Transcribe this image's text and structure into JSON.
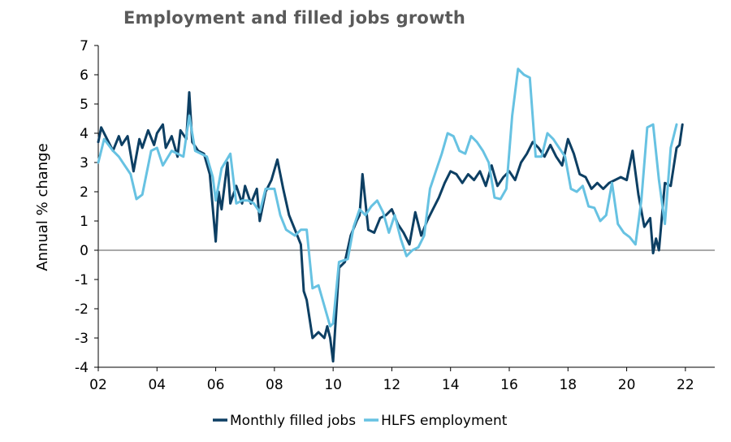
{
  "chart_data": {
    "type": "line",
    "title": "Employment and filled jobs growth",
    "xlabel": "",
    "ylabel": "Annual % change",
    "xlim": [
      2002,
      2023
    ],
    "ylim": [
      -4,
      7
    ],
    "x_ticks": [
      2002,
      2004,
      2006,
      2008,
      2010,
      2012,
      2014,
      2016,
      2018,
      2020,
      2022
    ],
    "x_tick_labels": [
      "02",
      "04",
      "06",
      "08",
      "10",
      "12",
      "14",
      "16",
      "18",
      "20",
      "22"
    ],
    "y_ticks": [
      -4,
      -3,
      -2,
      -1,
      0,
      1,
      2,
      3,
      4,
      5,
      6,
      7
    ],
    "y_tick_labels": [
      "-4",
      "-3",
      "-2",
      "-1",
      "0",
      "1",
      "2",
      "3",
      "4",
      "5",
      "6",
      "7"
    ],
    "grid": false,
    "legend_position": "bottom",
    "series": [
      {
        "name": "Monthly filled jobs",
        "color": "#0d3f63",
        "x": [
          2002.0,
          2002.1,
          2002.3,
          2002.5,
          2002.7,
          2002.8,
          2003.0,
          2003.2,
          2003.4,
          2003.5,
          2003.7,
          2003.9,
          2004.0,
          2004.2,
          2004.3,
          2004.5,
          2004.7,
          2004.8,
          2005.0,
          2005.1,
          2005.2,
          2005.4,
          2005.6,
          2005.8,
          2006.0,
          2006.1,
          2006.2,
          2006.4,
          2006.5,
          2006.7,
          2006.9,
          2007.0,
          2007.2,
          2007.4,
          2007.5,
          2007.7,
          2007.9,
          2008.1,
          2008.3,
          2008.5,
          2008.7,
          2008.9,
          2009.0,
          2009.1,
          2009.3,
          2009.5,
          2009.7,
          2009.8,
          2009.9,
          2010.0,
          2010.2,
          2010.4,
          2010.6,
          2010.8,
          2010.9,
          2011.0,
          2011.2,
          2011.4,
          2011.6,
          2011.8,
          2012.0,
          2012.2,
          2012.4,
          2012.6,
          2012.8,
          2013.0,
          2013.2,
          2013.4,
          2013.6,
          2013.8,
          2014.0,
          2014.2,
          2014.4,
          2014.6,
          2014.8,
          2015.0,
          2015.2,
          2015.4,
          2015.6,
          2015.8,
          2016.0,
          2016.2,
          2016.4,
          2016.6,
          2016.8,
          2017.0,
          2017.2,
          2017.4,
          2017.6,
          2017.8,
          2018.0,
          2018.2,
          2018.4,
          2018.6,
          2018.8,
          2019.0,
          2019.2,
          2019.4,
          2019.6,
          2019.8,
          2020.0,
          2020.2,
          2020.4,
          2020.6,
          2020.8,
          2020.9,
          2021.0,
          2021.1,
          2021.3,
          2021.5,
          2021.7,
          2021.8,
          2021.9
        ],
        "values": [
          3.7,
          4.2,
          3.8,
          3.4,
          3.9,
          3.6,
          3.9,
          2.7,
          3.8,
          3.5,
          4.1,
          3.6,
          4.0,
          4.3,
          3.5,
          3.9,
          3.2,
          4.1,
          3.8,
          5.4,
          3.7,
          3.4,
          3.3,
          2.6,
          0.3,
          2.0,
          1.4,
          3.0,
          1.6,
          2.2,
          1.6,
          2.2,
          1.6,
          2.1,
          1.0,
          2.0,
          2.4,
          3.1,
          2.1,
          1.2,
          0.7,
          0.2,
          -1.4,
          -1.7,
          -3.0,
          -2.8,
          -3.0,
          -2.6,
          -3.0,
          -3.8,
          -0.6,
          -0.4,
          0.5,
          1.0,
          1.2,
          2.6,
          0.7,
          0.6,
          1.1,
          1.2,
          1.4,
          0.9,
          0.6,
          0.2,
          1.3,
          0.5,
          1.0,
          1.4,
          1.8,
          2.3,
          2.7,
          2.6,
          2.3,
          2.6,
          2.4,
          2.7,
          2.2,
          2.9,
          2.2,
          2.5,
          2.7,
          2.4,
          3.0,
          3.3,
          3.7,
          3.5,
          3.2,
          3.6,
          3.2,
          2.9,
          3.8,
          3.3,
          2.6,
          2.5,
          2.1,
          2.3,
          2.1,
          2.3,
          2.4,
          2.5,
          2.4,
          3.4,
          1.9,
          0.8,
          1.1,
          -0.1,
          0.4,
          0.0,
          2.3,
          2.2,
          3.5,
          3.6,
          4.3
        ]
      },
      {
        "name": "HLFS employment",
        "color": "#67c2e2",
        "x": [
          2002.0,
          2002.2,
          2002.5,
          2002.7,
          2002.9,
          2003.1,
          2003.3,
          2003.5,
          2003.8,
          2004.0,
          2004.2,
          2004.5,
          2004.7,
          2004.9,
          2005.1,
          2005.3,
          2005.5,
          2005.7,
          2005.9,
          2006.0,
          2006.2,
          2006.5,
          2006.7,
          2006.9,
          2007.1,
          2007.3,
          2007.5,
          2007.7,
          2008.0,
          2008.2,
          2008.4,
          2008.7,
          2008.9,
          2009.1,
          2009.3,
          2009.5,
          2009.7,
          2009.9,
          2010.0,
          2010.2,
          2010.5,
          2010.7,
          2010.9,
          2011.1,
          2011.3,
          2011.5,
          2011.7,
          2011.9,
          2012.1,
          2012.3,
          2012.5,
          2012.7,
          2012.9,
          2013.1,
          2013.3,
          2013.5,
          2013.7,
          2013.9,
          2014.1,
          2014.3,
          2014.5,
          2014.7,
          2014.9,
          2015.1,
          2015.3,
          2015.5,
          2015.7,
          2015.9,
          2016.1,
          2016.3,
          2016.5,
          2016.7,
          2016.9,
          2017.1,
          2017.3,
          2017.5,
          2017.7,
          2017.9,
          2018.1,
          2018.3,
          2018.5,
          2018.7,
          2018.9,
          2019.1,
          2019.3,
          2019.5,
          2019.7,
          2019.9,
          2020.1,
          2020.3,
          2020.5,
          2020.7,
          2020.9,
          2021.1,
          2021.3,
          2021.5,
          2021.7
        ],
        "values": [
          3.0,
          3.8,
          3.4,
          3.2,
          2.9,
          2.6,
          1.75,
          1.9,
          3.4,
          3.5,
          2.9,
          3.4,
          3.3,
          3.2,
          4.6,
          3.4,
          3.3,
          3.2,
          2.5,
          1.7,
          2.8,
          3.3,
          1.6,
          1.7,
          1.7,
          1.6,
          1.3,
          2.1,
          2.1,
          1.2,
          0.7,
          0.5,
          0.7,
          0.7,
          -1.3,
          -1.2,
          -1.9,
          -2.6,
          -2.5,
          -0.4,
          -0.3,
          0.8,
          1.4,
          1.2,
          1.5,
          1.7,
          1.3,
          0.6,
          1.2,
          0.4,
          -0.2,
          0.0,
          0.1,
          0.5,
          2.1,
          2.7,
          3.3,
          4.0,
          3.9,
          3.4,
          3.3,
          3.9,
          3.7,
          3.4,
          3.0,
          1.8,
          1.75,
          2.1,
          4.6,
          6.2,
          6.0,
          5.9,
          3.2,
          3.2,
          4.0,
          3.8,
          3.5,
          3.2,
          2.1,
          2.0,
          2.2,
          1.5,
          1.45,
          1.0,
          1.2,
          2.3,
          0.9,
          0.6,
          0.45,
          0.2,
          1.7,
          4.2,
          4.3,
          2.4,
          0.9,
          3.5,
          4.3
        ]
      }
    ]
  }
}
